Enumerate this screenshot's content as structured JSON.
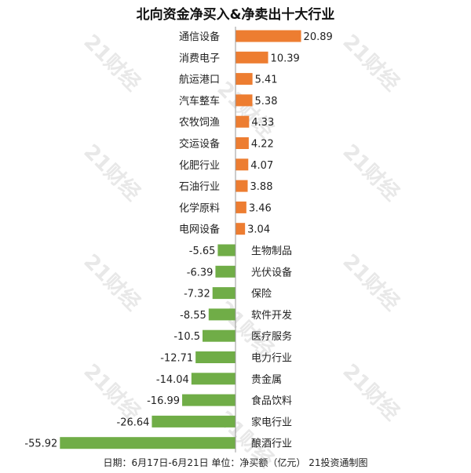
{
  "title": "北向资金净买入&净卖出十大行业",
  "footer": "日期：6月17日-6月21日 单位：净买额（亿元） 21投资通制图",
  "watermark": "21财经",
  "colors": {
    "positive": "#ED7D31",
    "negative": "#70AD47",
    "axis": "#999999",
    "text": "#222222"
  },
  "chart_data": {
    "type": "bar",
    "orientation": "horizontal",
    "title": "北向资金净买入&净卖出十大行业",
    "categories": [
      "通信设备",
      "消费电子",
      "航运港口",
      "汽车整车",
      "农牧饲渔",
      "交运设备",
      "化肥行业",
      "石油行业",
      "化学原料",
      "电网设备",
      "生物制品",
      "光伏设备",
      "保险",
      "软件开发",
      "医疗服务",
      "电力行业",
      "贵金属",
      "食品饮料",
      "家电行业",
      "酿酒行业"
    ],
    "values": [
      20.89,
      10.39,
      5.41,
      5.38,
      4.33,
      4.22,
      4.07,
      3.88,
      3.46,
      3.04,
      -5.65,
      -6.39,
      -7.32,
      -8.55,
      -10.5,
      -12.71,
      -14.04,
      -16.99,
      -26.64,
      -55.92
    ],
    "value_labels": [
      "20.89",
      "10.39",
      "5.41",
      "5.38",
      "4.33",
      "4.22",
      "4.07",
      "3.88",
      "3.46",
      "3.04",
      "-5.65",
      "-6.39",
      "-7.32",
      "-8.55",
      "-10.5",
      "-12.71",
      "-14.04",
      "-16.99",
      "-26.64",
      "-55.92"
    ],
    "xlabel": "",
    "ylabel": "",
    "grid": false,
    "legend": "none"
  }
}
